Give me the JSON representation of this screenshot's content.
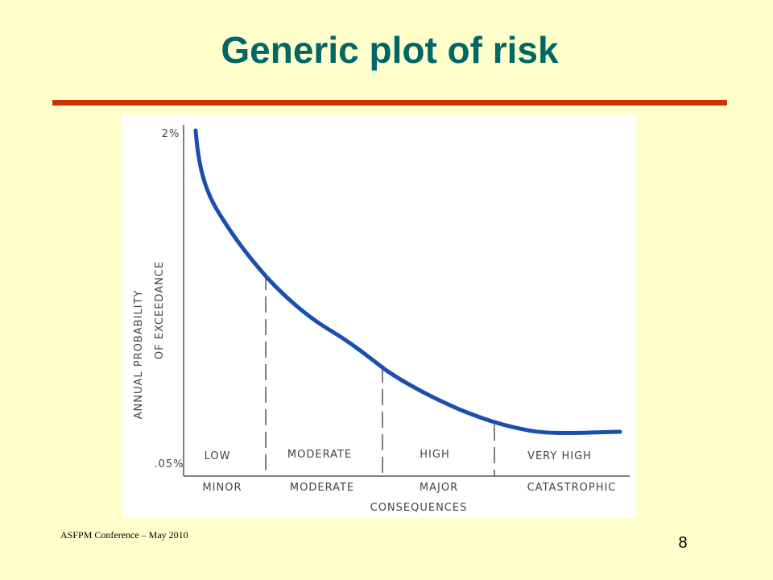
{
  "slide": {
    "title": "Generic plot of risk",
    "footer": "ASFPM Conference – May 2010",
    "page_number": "8"
  },
  "sketch": {
    "y_axis_label": [
      "ANNUAL PROBABILITY",
      "OF EXCEEDANCE"
    ],
    "y_top": "2%",
    "y_bottom": ".05%",
    "risk_levels": [
      "LOW",
      "MODERATE",
      "HIGH",
      "VERY HIGH"
    ],
    "consequences": [
      "MINOR",
      "MODERATE",
      "MAJOR",
      "CATASTROPHIC"
    ],
    "x_axis_label": "CONSEQUENCES"
  }
}
